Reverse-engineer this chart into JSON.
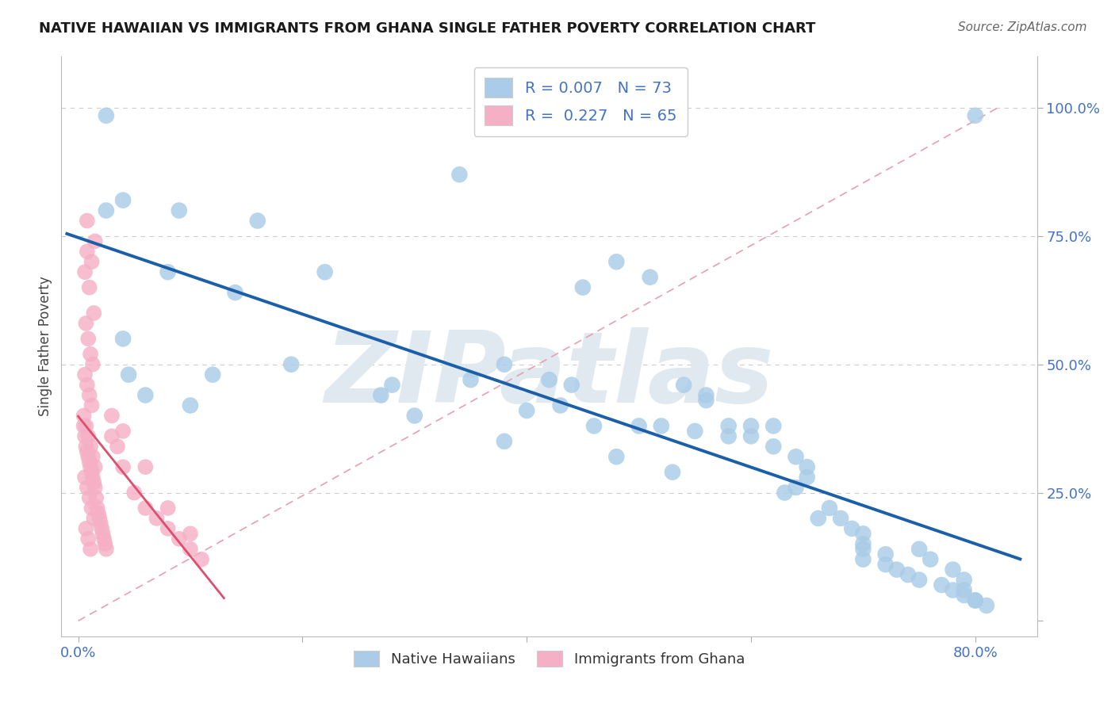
{
  "title": "NATIVE HAWAIIAN VS IMMIGRANTS FROM GHANA SINGLE FATHER POVERTY CORRELATION CHART",
  "source": "Source: ZipAtlas.com",
  "ylabel": "Single Father Poverty",
  "blue_R": 0.007,
  "blue_N": 73,
  "pink_R": 0.227,
  "pink_N": 65,
  "blue_color": "#aacce8",
  "blue_line_color": "#1a5fa8",
  "pink_color": "#f5b0c5",
  "pink_line_color": "#d95070",
  "ref_line_color": "#e8a0b0",
  "background_color": "#ffffff",
  "grid_color": "#cccccc",
  "watermark": "ZIPatlas",
  "tick_color": "#4472c4",
  "title_color": "#1a1a1a",
  "source_color": "#666666",
  "label_color": "#444444",
  "blue_x": [
    0.025,
    0.34,
    0.025,
    0.04,
    0.09,
    0.16,
    0.22,
    0.08,
    0.14,
    0.19,
    0.04,
    0.12,
    0.045,
    0.1,
    0.06,
    0.48,
    0.51,
    0.45,
    0.35,
    0.28,
    0.27,
    0.3,
    0.4,
    0.43,
    0.46,
    0.5,
    0.52,
    0.55,
    0.58,
    0.6,
    0.6,
    0.62,
    0.64,
    0.65,
    0.65,
    0.67,
    0.68,
    0.69,
    0.7,
    0.7,
    0.7,
    0.72,
    0.73,
    0.74,
    0.75,
    0.77,
    0.78,
    0.79,
    0.8,
    0.81,
    0.38,
    0.42,
    0.44,
    0.54,
    0.56,
    0.56,
    0.58,
    0.62,
    0.63,
    0.64,
    0.38,
    0.48,
    0.53,
    0.66,
    0.7,
    0.72,
    0.75,
    0.76,
    0.78,
    0.79,
    0.79,
    0.8,
    0.8
  ],
  "blue_y": [
    0.985,
    0.87,
    0.8,
    0.82,
    0.8,
    0.78,
    0.68,
    0.68,
    0.64,
    0.5,
    0.55,
    0.48,
    0.48,
    0.42,
    0.44,
    0.7,
    0.67,
    0.65,
    0.47,
    0.46,
    0.44,
    0.4,
    0.41,
    0.42,
    0.38,
    0.38,
    0.38,
    0.37,
    0.36,
    0.38,
    0.36,
    0.34,
    0.32,
    0.3,
    0.28,
    0.22,
    0.2,
    0.18,
    0.17,
    0.14,
    0.12,
    0.11,
    0.1,
    0.09,
    0.08,
    0.07,
    0.06,
    0.05,
    0.04,
    0.03,
    0.5,
    0.47,
    0.46,
    0.46,
    0.44,
    0.43,
    0.38,
    0.38,
    0.25,
    0.26,
    0.35,
    0.32,
    0.29,
    0.2,
    0.15,
    0.13,
    0.14,
    0.12,
    0.1,
    0.08,
    0.06,
    0.04,
    0.985
  ],
  "pink_x": [
    0.008,
    0.015,
    0.008,
    0.012,
    0.006,
    0.01,
    0.014,
    0.007,
    0.009,
    0.011,
    0.013,
    0.006,
    0.008,
    0.01,
    0.012,
    0.005,
    0.007,
    0.009,
    0.011,
    0.013,
    0.015,
    0.006,
    0.008,
    0.01,
    0.012,
    0.014,
    0.007,
    0.009,
    0.011,
    0.005,
    0.006,
    0.007,
    0.008,
    0.009,
    0.01,
    0.011,
    0.012,
    0.013,
    0.014,
    0.015,
    0.016,
    0.017,
    0.018,
    0.019,
    0.02,
    0.021,
    0.022,
    0.023,
    0.024,
    0.025,
    0.03,
    0.035,
    0.04,
    0.05,
    0.06,
    0.07,
    0.08,
    0.09,
    0.1,
    0.11,
    0.03,
    0.04,
    0.06,
    0.08,
    0.1
  ],
  "pink_y": [
    0.78,
    0.74,
    0.72,
    0.7,
    0.68,
    0.65,
    0.6,
    0.58,
    0.55,
    0.52,
    0.5,
    0.48,
    0.46,
    0.44,
    0.42,
    0.4,
    0.38,
    0.36,
    0.34,
    0.32,
    0.3,
    0.28,
    0.26,
    0.24,
    0.22,
    0.2,
    0.18,
    0.16,
    0.14,
    0.38,
    0.36,
    0.34,
    0.33,
    0.32,
    0.31,
    0.3,
    0.29,
    0.28,
    0.27,
    0.26,
    0.24,
    0.22,
    0.21,
    0.2,
    0.19,
    0.18,
    0.17,
    0.16,
    0.15,
    0.14,
    0.36,
    0.34,
    0.3,
    0.25,
    0.22,
    0.2,
    0.18,
    0.16,
    0.14,
    0.12,
    0.4,
    0.37,
    0.3,
    0.22,
    0.17
  ]
}
